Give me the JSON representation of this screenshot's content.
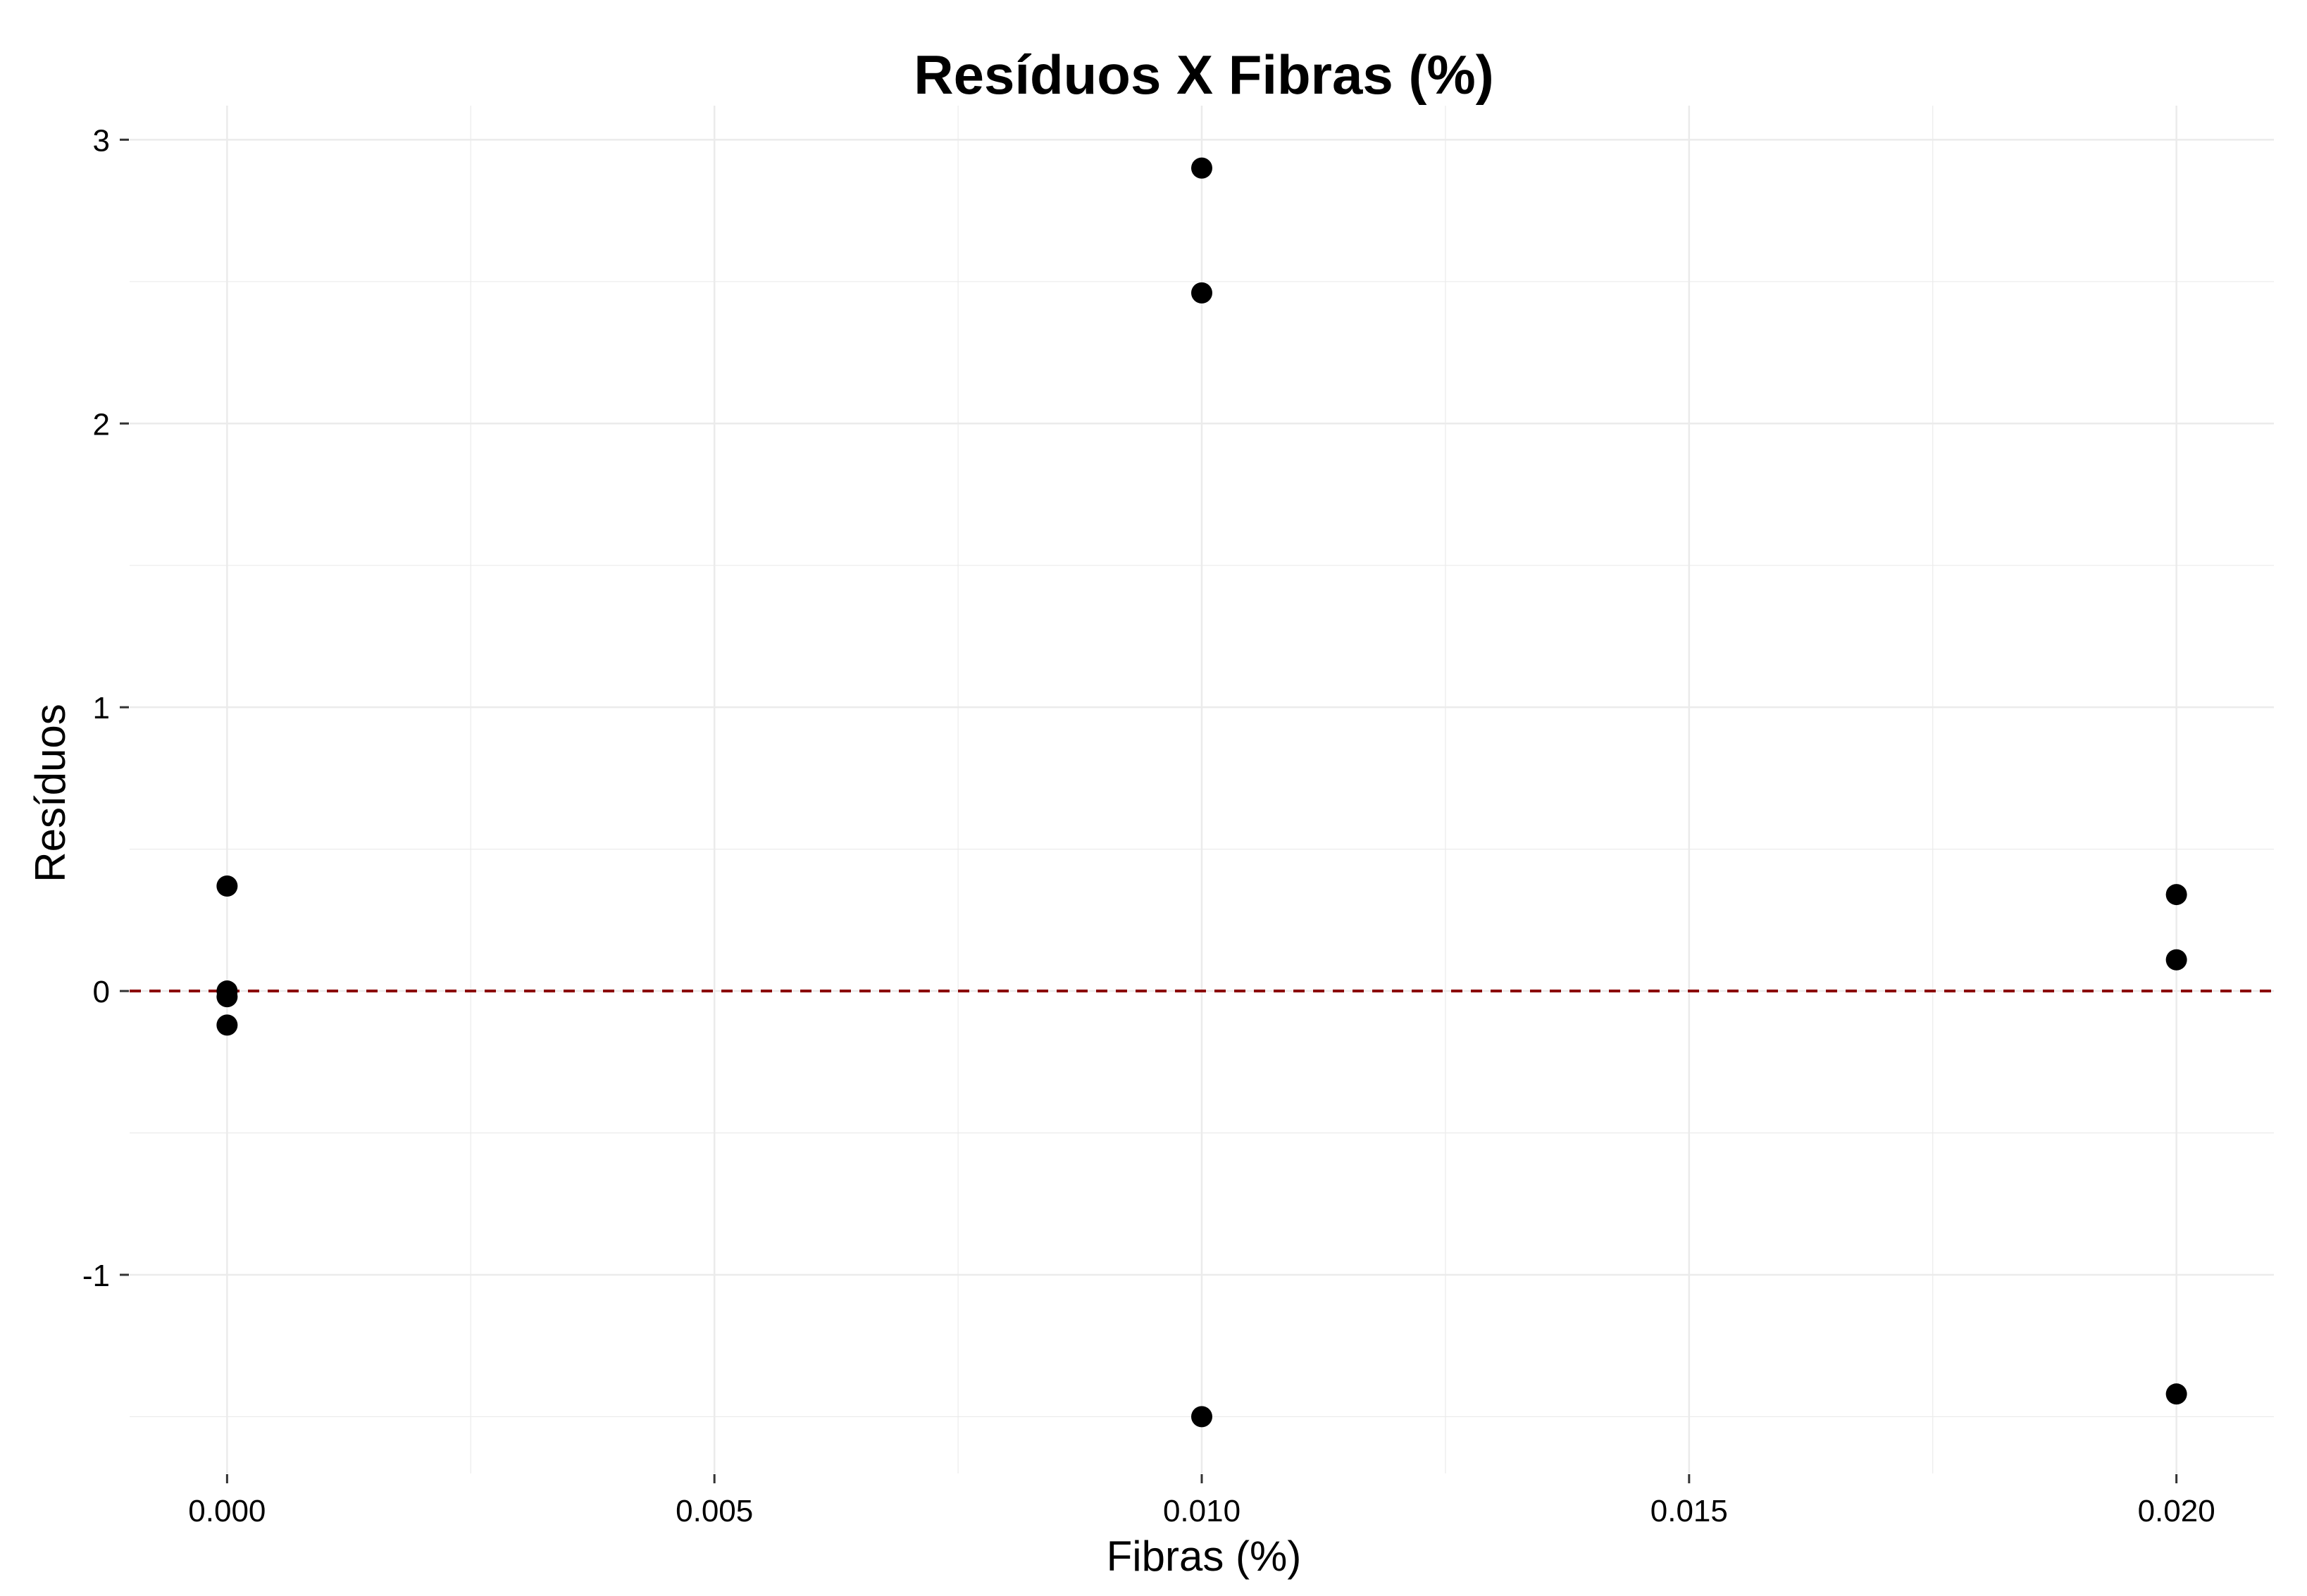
{
  "chart_data": {
    "type": "scatter",
    "title": "Resíduos X Fibras (%)",
    "xlabel": "Fibras (%)",
    "ylabel": "Resíduos",
    "xlim": [
      -0.001,
      0.021
    ],
    "ylim": [
      -1.7,
      3.12
    ],
    "x_ticks": [
      0.0,
      0.005,
      0.01,
      0.015,
      0.02
    ],
    "x_tick_labels": [
      "0.000",
      "0.005",
      "0.010",
      "0.015",
      "0.020"
    ],
    "y_ticks": [
      -1,
      0,
      1,
      2,
      3
    ],
    "y_tick_labels": [
      "-1",
      "0",
      "1",
      "2",
      "3"
    ],
    "grid": true,
    "points": [
      {
        "x": 0.0,
        "y": 0.37
      },
      {
        "x": 0.0,
        "y": 0.0
      },
      {
        "x": 0.0,
        "y": -0.02
      },
      {
        "x": 0.0,
        "y": -0.12
      },
      {
        "x": 0.01,
        "y": 2.9
      },
      {
        "x": 0.01,
        "y": 2.46
      },
      {
        "x": 0.01,
        "y": -1.5
      },
      {
        "x": 0.02,
        "y": 0.34
      },
      {
        "x": 0.02,
        "y": 0.11
      },
      {
        "x": 0.02,
        "y": -1.42
      }
    ],
    "reference_line": {
      "y": 0,
      "style": "dashed"
    },
    "colors": {
      "points": "#000000",
      "reference_line": "#8b0000",
      "grid": "#ebebeb",
      "ticks": "#333333"
    }
  }
}
